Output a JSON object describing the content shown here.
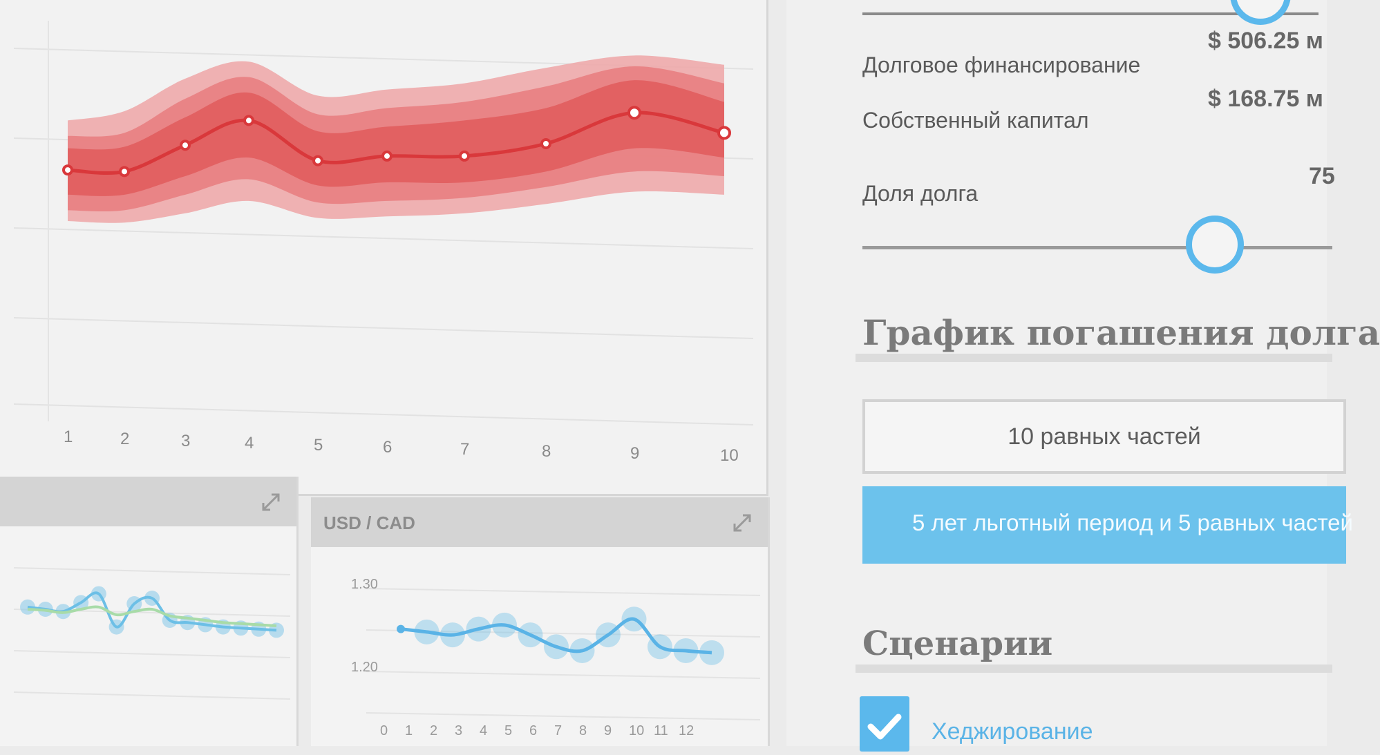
{
  "main_chart": {
    "colors": {
      "median": "#d9383b",
      "band_inner": "#e05a5c",
      "band_mid": "#e77c7e",
      "band_outer": "#eea6a7"
    },
    "chart_data": {
      "type": "area",
      "x": [
        1,
        2,
        3,
        4,
        5,
        6,
        7,
        8,
        9,
        10
      ],
      "x_tick_labels": [
        "1",
        "2",
        "3",
        "4",
        "5",
        "6",
        "7",
        "8",
        "9",
        "10"
      ],
      "median": [
        0.38,
        0.37,
        0.54,
        0.7,
        0.44,
        0.47,
        0.47,
        0.55,
        0.75,
        0.62
      ],
      "band_inner": {
        "low": [
          0.22,
          0.22,
          0.34,
          0.46,
          0.28,
          0.3,
          0.3,
          0.37,
          0.52,
          0.46
        ],
        "high": [
          0.52,
          0.53,
          0.72,
          0.88,
          0.63,
          0.66,
          0.7,
          0.78,
          0.96,
          0.82
        ]
      },
      "band_mid": {
        "low": [
          0.12,
          0.12,
          0.22,
          0.32,
          0.17,
          0.18,
          0.2,
          0.27,
          0.37,
          0.34
        ],
        "high": [
          0.6,
          0.62,
          0.84,
          0.98,
          0.74,
          0.78,
          0.82,
          0.92,
          1.05,
          0.94
        ]
      },
      "band_outer": {
        "low": [
          0.05,
          0.04,
          0.1,
          0.18,
          0.07,
          0.08,
          0.1,
          0.16,
          0.24,
          0.22
        ],
        "high": [
          0.7,
          0.76,
          0.97,
          1.08,
          0.86,
          0.9,
          0.94,
          1.04,
          1.12,
          1.06
        ]
      },
      "ylim": [
        -1.2,
        1.3
      ],
      "grid": true
    }
  },
  "mini_left": {
    "title": "",
    "chart_data": {
      "type": "line",
      "x": [
        0,
        1,
        2,
        3,
        4,
        5,
        6,
        7,
        8,
        9,
        10,
        11,
        12,
        13,
        14
      ],
      "series": [
        {
          "values": [
            0.52,
            0.5,
            0.48,
            0.56,
            0.64,
            0.34,
            0.55,
            0.6,
            0.4,
            0.38,
            0.36,
            0.34,
            0.33,
            0.32,
            0.31
          ]
        },
        {
          "values": [
            0.5,
            0.49,
            0.47,
            0.5,
            0.52,
            0.45,
            0.48,
            0.5,
            0.44,
            0.42,
            0.4,
            0.38,
            0.37,
            0.36,
            0.35
          ]
        }
      ],
      "colors": [
        "#6cbfe6",
        "#a8dba8"
      ]
    }
  },
  "mini_right": {
    "title": "USD / CAD",
    "chart_data": {
      "type": "line",
      "x": [
        0,
        1,
        2,
        3,
        4,
        5,
        6,
        7,
        8,
        9,
        10,
        11,
        12
      ],
      "x_tick_labels": [
        "0",
        "1",
        "2",
        "3",
        "4",
        "5",
        "6",
        "7",
        "8",
        "9",
        "10",
        "11",
        "12"
      ],
      "y_tick_labels": [
        "1.30",
        "1.20"
      ],
      "values": [
        1.258,
        1.255,
        1.252,
        1.258,
        1.262,
        1.252,
        1.24,
        1.236,
        1.252,
        1.268,
        1.24,
        1.236,
        1.234
      ],
      "ylim": [
        1.18,
        1.32
      ]
    }
  },
  "settings": {
    "debt_financing_label": "Долговое финансирование",
    "debt_financing_value": "$ 506.25 м",
    "equity_label": "Собственный капитал",
    "equity_value": "$ 168.75 м",
    "debt_share_label": "Доля долга",
    "debt_share_value": "75",
    "repayment_title": "График погашения долга",
    "repayment_option_1": "10 равных частей",
    "repayment_option_2": "5 лет льготный период и 5 равных частей",
    "scenarios_title": "Сценарии",
    "scenario_1": "Хеджирование"
  }
}
